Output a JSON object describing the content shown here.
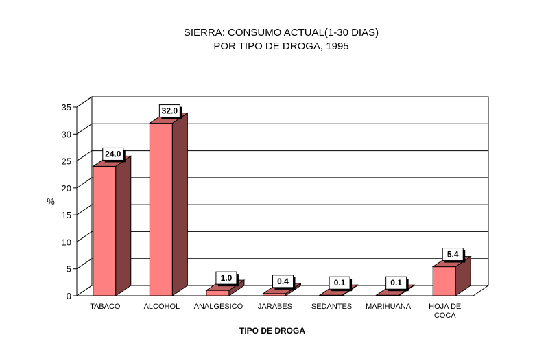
{
  "chart_data": {
    "type": "bar",
    "title_lines": [
      "SIERRA: CONSUMO ACTUAL(1-30 DIAS)",
      "POR TIPO DE DROGA, 1995"
    ],
    "xlabel": "TIPO DE DROGA",
    "ylabel": "%",
    "ylim": [
      0,
      35
    ],
    "yticks": [
      0,
      5,
      10,
      15,
      20,
      25,
      30,
      35
    ],
    "grid": true,
    "three_d": true,
    "categories": [
      [
        "TABACO"
      ],
      [
        "ALCOHOL"
      ],
      [
        "ANALGESICO"
      ],
      [
        "JARABES"
      ],
      [
        "SEDANTES"
      ],
      [
        "MARIHUANA"
      ],
      [
        "HOJA DE",
        "COCA"
      ]
    ],
    "values": [
      24.0,
      32.0,
      1.0,
      0.4,
      0.1,
      0.1,
      5.4
    ],
    "data_labels": [
      "24.0",
      "32.0",
      "1.0",
      "0.4",
      "0.1",
      "0.1",
      "5.4"
    ],
    "colors": {
      "bar_front": "#FF8080",
      "bar_side": "#804040",
      "bar_top": "#C06060",
      "grid": "#000000",
      "background": "#FFFFFF"
    }
  }
}
